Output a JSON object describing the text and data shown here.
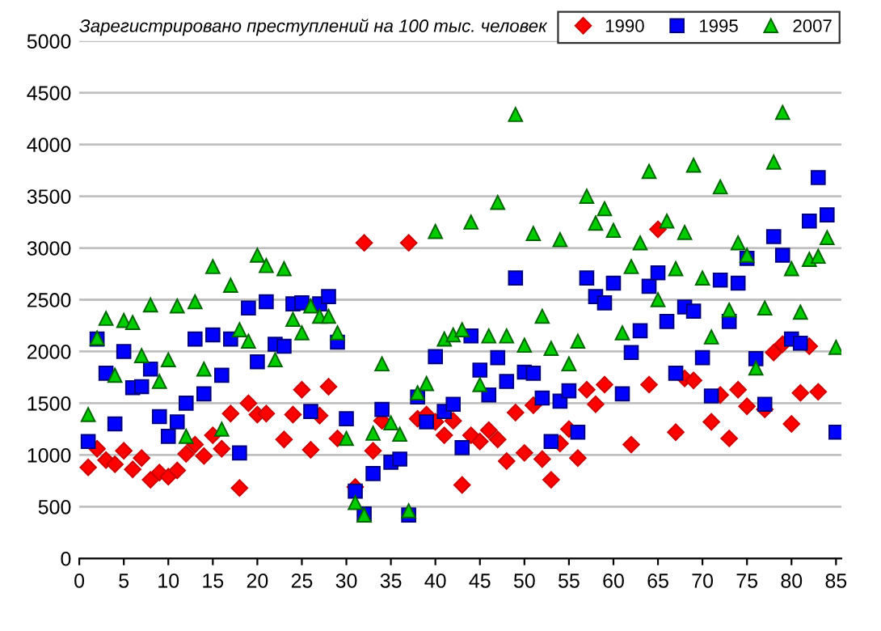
{
  "chart_data": {
    "type": "scatter",
    "title": "Зарегистрировано преступлений на 100 тыс. человек",
    "x": [
      1,
      2,
      3,
      4,
      5,
      6,
      7,
      8,
      9,
      10,
      11,
      12,
      13,
      14,
      15,
      16,
      17,
      18,
      19,
      20,
      21,
      22,
      23,
      24,
      25,
      26,
      27,
      28,
      29,
      30,
      31,
      32,
      33,
      34,
      35,
      36,
      37,
      38,
      39,
      40,
      41,
      42,
      43,
      44,
      45,
      46,
      47,
      48,
      49,
      50,
      51,
      52,
      53,
      54,
      55,
      56,
      57,
      58,
      59,
      60,
      61,
      62,
      63,
      64,
      65,
      66,
      67,
      68,
      69,
      70,
      71,
      72,
      73,
      74,
      75,
      76,
      77,
      78,
      79,
      80,
      81,
      82,
      83,
      84,
      85
    ],
    "series": [
      {
        "name": "1990",
        "color": "#ff0000",
        "marker": "diamond",
        "values": [
          880,
          1060,
          950,
          910,
          1040,
          860,
          970,
          760,
          830,
          790,
          850,
          1010,
          1100,
          990,
          1190,
          1060,
          1400,
          680,
          1500,
          1390,
          1400,
          null,
          1150,
          1390,
          1630,
          1050,
          1380,
          1660,
          1160,
          null,
          690,
          3050,
          1040,
          1330,
          null,
          null,
          3050,
          1350,
          1390,
          1320,
          1190,
          1330,
          710,
          1190,
          1130,
          1240,
          1150,
          940,
          1410,
          1020,
          1480,
          960,
          760,
          1110,
          1250,
          970,
          1630,
          1490,
          1680,
          null,
          null,
          1100,
          null,
          1680,
          3180,
          null,
          1220,
          1740,
          1720,
          null,
          1320,
          1580,
          1160,
          1630,
          1470,
          null,
          1440,
          1990,
          2070,
          1300,
          1600,
          2050,
          1610,
          null,
          null
        ]
      },
      {
        "name": "1995",
        "color": "#0000ff",
        "marker": "square",
        "values": [
          1130,
          2120,
          1790,
          1300,
          2000,
          1650,
          1660,
          1830,
          1370,
          1180,
          1320,
          1500,
          2120,
          1590,
          2160,
          1770,
          2120,
          1020,
          2420,
          1900,
          2480,
          2070,
          2050,
          2460,
          2470,
          1420,
          2460,
          2530,
          2090,
          1350,
          650,
          430,
          820,
          1440,
          930,
          960,
          420,
          1560,
          1320,
          1950,
          1420,
          1490,
          1070,
          2150,
          1820,
          1580,
          1940,
          1710,
          2710,
          1800,
          1790,
          1550,
          1130,
          1520,
          1620,
          1220,
          2710,
          2530,
          2470,
          2660,
          1590,
          1990,
          2200,
          2630,
          2760,
          2290,
          1790,
          2430,
          2390,
          1940,
          1570,
          2690,
          2290,
          2660,
          2900,
          1930,
          1490,
          3110,
          2930,
          2120,
          2080,
          3260,
          3680,
          3320,
          1220
        ]
      },
      {
        "name": "2007",
        "color": "#00cc00",
        "marker": "triangle",
        "values": [
          1390,
          2130,
          2320,
          1770,
          2300,
          2280,
          1960,
          2450,
          1710,
          1920,
          2440,
          1180,
          2480,
          1830,
          2820,
          1250,
          2640,
          2210,
          2100,
          2930,
          2830,
          1920,
          2800,
          2310,
          2180,
          2440,
          2340,
          2340,
          2180,
          1160,
          540,
          420,
          1210,
          1880,
          1310,
          1200,
          460,
          1600,
          1690,
          3160,
          2120,
          2160,
          2210,
          3250,
          1680,
          2150,
          3440,
          2150,
          4290,
          2060,
          3140,
          2340,
          2030,
          3080,
          1880,
          2100,
          3500,
          3240,
          3380,
          3170,
          2180,
          2820,
          3050,
          3740,
          2500,
          3260,
          2800,
          3150,
          3800,
          2710,
          2140,
          3590,
          2400,
          3050,
          2930,
          1840,
          2420,
          3830,
          4310,
          2800,
          2380,
          2890,
          2920,
          3100,
          2040
        ]
      }
    ],
    "xlim": [
      0,
      85.6
    ],
    "xticks": [
      0,
      5,
      10,
      15,
      20,
      25,
      30,
      35,
      40,
      45,
      50,
      55,
      60,
      65,
      70,
      75,
      80,
      85
    ],
    "ylim": [
      0,
      5000
    ],
    "yticks": [
      0,
      500,
      1000,
      1500,
      2000,
      2500,
      3000,
      3500,
      4000,
      4500,
      5000
    ],
    "grid": "y",
    "legend": "top right"
  }
}
